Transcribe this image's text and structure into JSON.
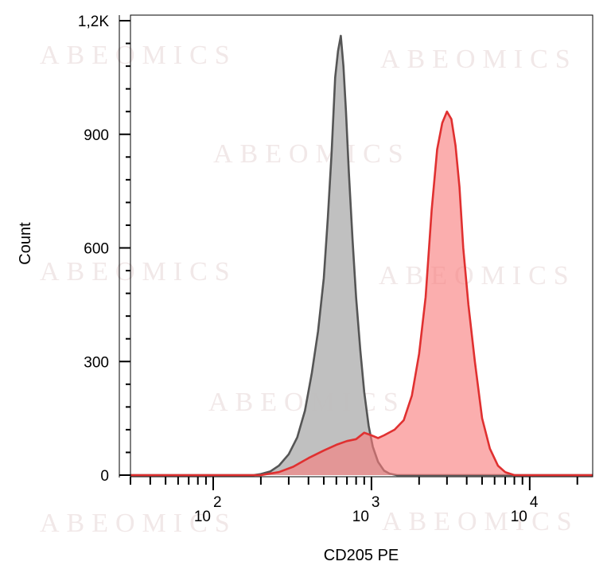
{
  "watermark": "ABEOMICS",
  "chart_data": {
    "type": "area",
    "xlabel": "CD205 PE",
    "ylabel": "Count",
    "xscale": "log",
    "xlim": [
      30,
      25000
    ],
    "ylim": [
      0,
      1200
    ],
    "yticks": [
      {
        "value": 0,
        "label": "0"
      },
      {
        "value": 300,
        "label": "300"
      },
      {
        "value": 600,
        "label": "600"
      },
      {
        "value": 900,
        "label": "900"
      },
      {
        "value": 1200,
        "label": "1,2K"
      }
    ],
    "xticks": [
      {
        "value": 100,
        "base": "10",
        "exp": "2"
      },
      {
        "value": 1000,
        "base": "10",
        "exp": "3"
      },
      {
        "value": 10000,
        "base": "10",
        "exp": "4"
      }
    ],
    "grid": false,
    "series": [
      {
        "color": "#555555",
        "fill": "#bdbdbd",
        "fill_opacity": 0.95,
        "points": [
          [
            30,
            0
          ],
          [
            180,
            0
          ],
          [
            200,
            3
          ],
          [
            230,
            10
          ],
          [
            260,
            25
          ],
          [
            300,
            55
          ],
          [
            340,
            100
          ],
          [
            380,
            170
          ],
          [
            420,
            270
          ],
          [
            460,
            380
          ],
          [
            500,
            520
          ],
          [
            530,
            680
          ],
          [
            560,
            850
          ],
          [
            590,
            1050
          ],
          [
            615,
            1120
          ],
          [
            640,
            1160
          ],
          [
            665,
            1080
          ],
          [
            690,
            960
          ],
          [
            720,
            800
          ],
          [
            760,
            620
          ],
          [
            800,
            470
          ],
          [
            850,
            330
          ],
          [
            900,
            220
          ],
          [
            960,
            130
          ],
          [
            1020,
            75
          ],
          [
            1100,
            35
          ],
          [
            1200,
            12
          ],
          [
            1300,
            4
          ],
          [
            1450,
            0
          ],
          [
            25000,
            0
          ]
        ]
      },
      {
        "color": "#e03030",
        "fill": "#f87c7c",
        "fill_opacity": 0.62,
        "points": [
          [
            30,
            0
          ],
          [
            200,
            0
          ],
          [
            260,
            8
          ],
          [
            320,
            22
          ],
          [
            400,
            45
          ],
          [
            500,
            65
          ],
          [
            600,
            80
          ],
          [
            700,
            90
          ],
          [
            800,
            95
          ],
          [
            900,
            112
          ],
          [
            1000,
            105
          ],
          [
            1100,
            98
          ],
          [
            1200,
            105
          ],
          [
            1400,
            120
          ],
          [
            1600,
            145
          ],
          [
            1800,
            210
          ],
          [
            2000,
            320
          ],
          [
            2200,
            470
          ],
          [
            2400,
            700
          ],
          [
            2600,
            860
          ],
          [
            2800,
            930
          ],
          [
            3000,
            960
          ],
          [
            3200,
            940
          ],
          [
            3400,
            870
          ],
          [
            3600,
            760
          ],
          [
            3800,
            600
          ],
          [
            4100,
            450
          ],
          [
            4500,
            300
          ],
          [
            5000,
            150
          ],
          [
            5600,
            70
          ],
          [
            6300,
            25
          ],
          [
            7000,
            8
          ],
          [
            8000,
            0
          ],
          [
            25000,
            0
          ]
        ]
      }
    ]
  }
}
